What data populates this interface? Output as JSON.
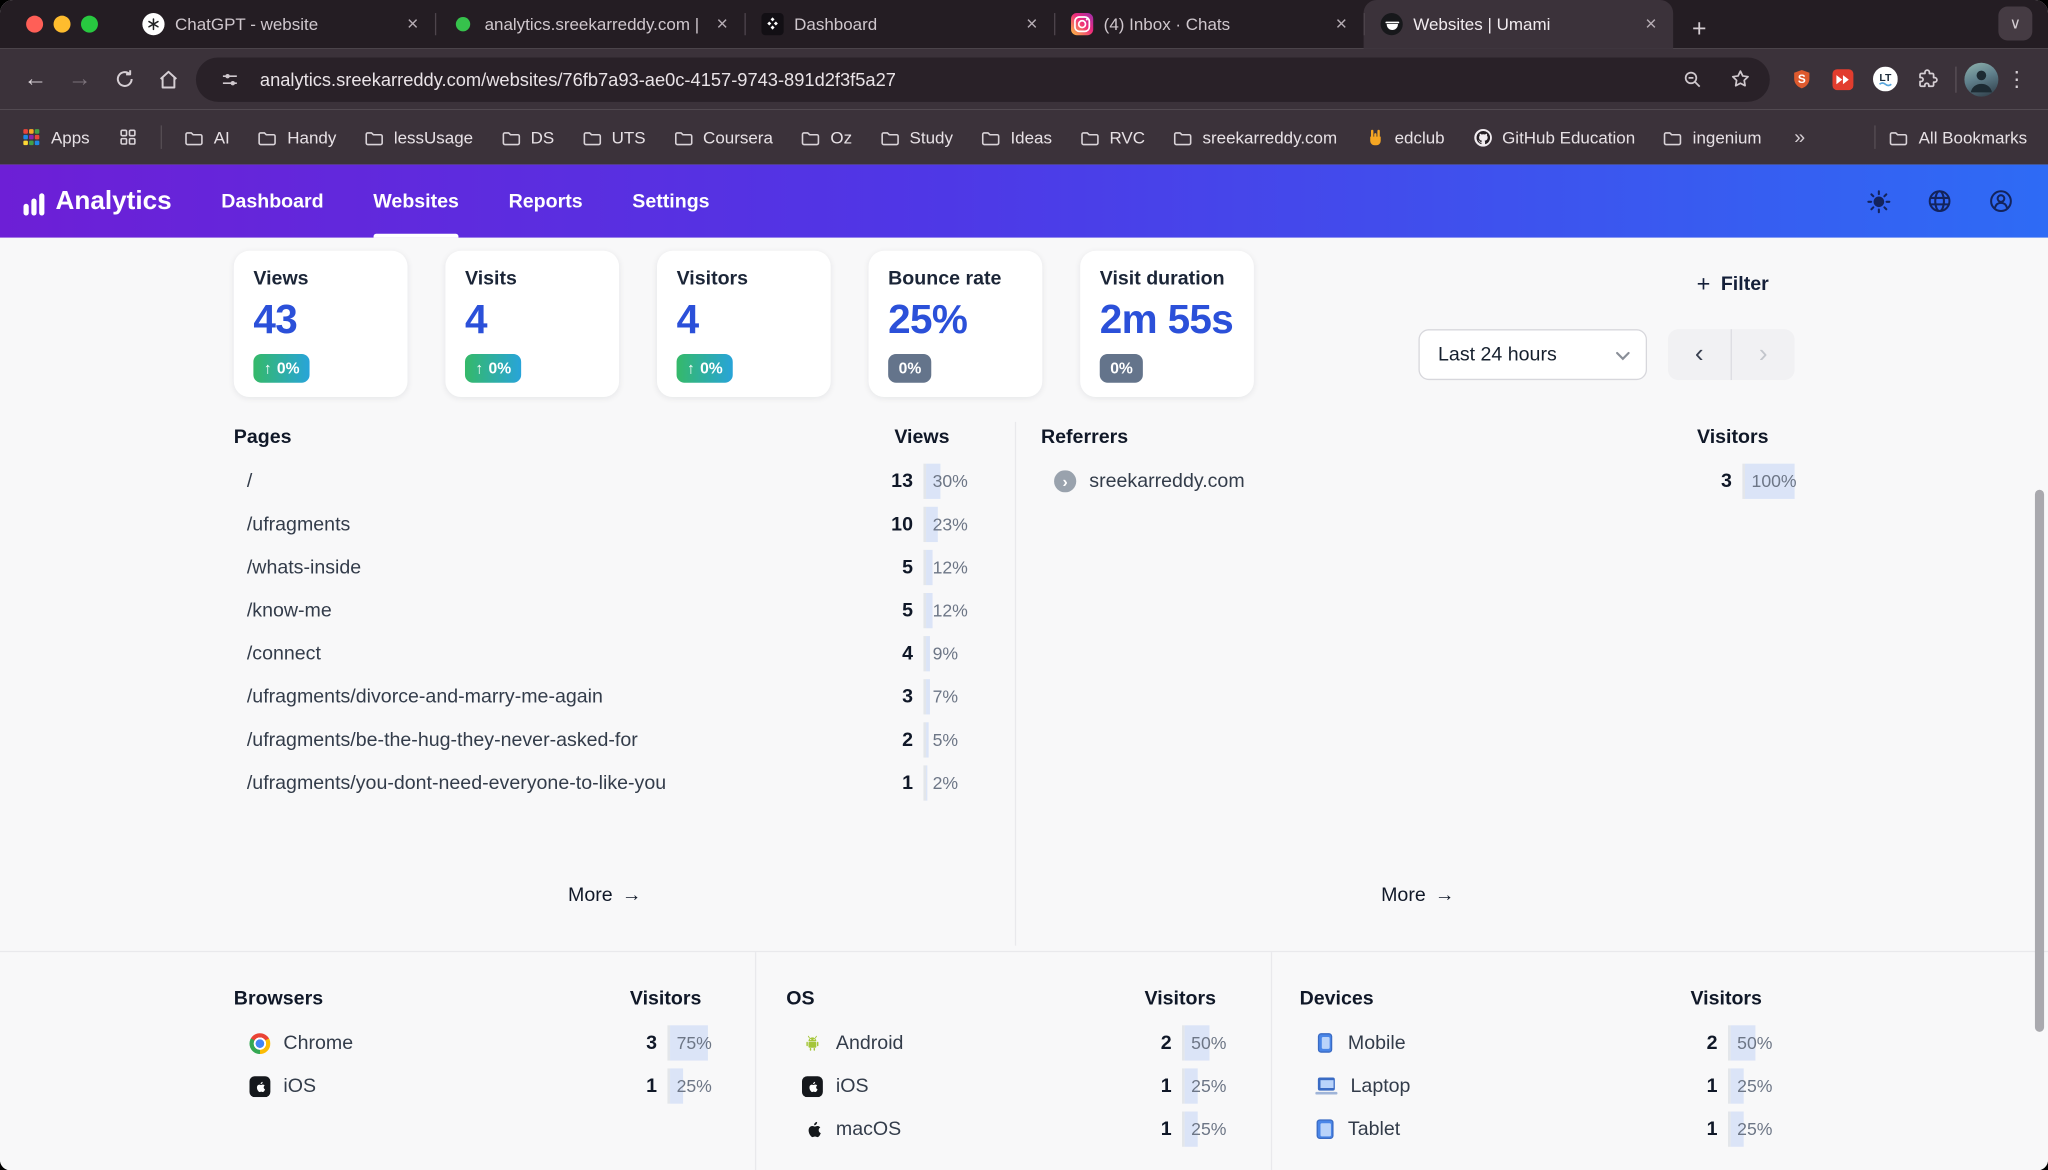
{
  "browser": {
    "tabs": [
      {
        "title": "ChatGPT - website",
        "favicon": "chatgpt",
        "active": false
      },
      {
        "title": "analytics.sreekarreddy.com |",
        "favicon": "green-dot",
        "active": false
      },
      {
        "title": "Dashboard",
        "favicon": "pinecone",
        "active": false
      },
      {
        "title": "(4) Inbox · Chats",
        "favicon": "instagram",
        "active": false
      },
      {
        "title": "Websites | Umami",
        "favicon": "umami",
        "active": true
      }
    ],
    "url": "analytics.sreekarreddy.com/websites/76fb7a93-ae0c-4157-9743-891d2f3f5a27",
    "bookmarks": [
      {
        "label": "Apps",
        "icon": "apps"
      },
      {
        "label": "",
        "icon": "grid"
      },
      {
        "label": "AI",
        "icon": "folder"
      },
      {
        "label": "Handy",
        "icon": "folder"
      },
      {
        "label": "lessUsage",
        "icon": "folder"
      },
      {
        "label": "DS",
        "icon": "folder"
      },
      {
        "label": "UTS",
        "icon": "folder"
      },
      {
        "label": "Coursera",
        "icon": "folder"
      },
      {
        "label": "Oz",
        "icon": "folder"
      },
      {
        "label": "Study",
        "icon": "folder"
      },
      {
        "label": "Ideas",
        "icon": "folder"
      },
      {
        "label": "RVC",
        "icon": "folder"
      },
      {
        "label": "sreekarreddy.com",
        "icon": "folder"
      },
      {
        "label": "edclub",
        "icon": "hand"
      },
      {
        "label": "GitHub Education",
        "icon": "github"
      },
      {
        "label": "ingenium",
        "icon": "folder"
      }
    ],
    "all_bookmarks_label": "All Bookmarks"
  },
  "nav": {
    "brand": "Analytics",
    "items": [
      {
        "label": "Dashboard",
        "active": false
      },
      {
        "label": "Websites",
        "active": true
      },
      {
        "label": "Reports",
        "active": false
      },
      {
        "label": "Settings",
        "active": false
      }
    ]
  },
  "controls": {
    "filter_label": "Filter",
    "date_range": "Last 24 hours"
  },
  "stats": [
    {
      "label": "Views",
      "value": "43",
      "change": "0%",
      "trend": "up"
    },
    {
      "label": "Visits",
      "value": "4",
      "change": "0%",
      "trend": "up"
    },
    {
      "label": "Visitors",
      "value": "4",
      "change": "0%",
      "trend": "up"
    },
    {
      "label": "Bounce rate",
      "value": "25%",
      "change": "0%",
      "trend": "flat"
    },
    {
      "label": "Visit duration",
      "value": "2m 55s",
      "change": "0%",
      "trend": "flat"
    }
  ],
  "panels": {
    "pages": {
      "title": "Pages",
      "metric": "Views",
      "more_label": "More",
      "rows": [
        {
          "label": "/",
          "value": "13",
          "pct": "30%"
        },
        {
          "label": "/ufragments",
          "value": "10",
          "pct": "23%"
        },
        {
          "label": "/whats-inside",
          "value": "5",
          "pct": "12%"
        },
        {
          "label": "/know-me",
          "value": "5",
          "pct": "12%"
        },
        {
          "label": "/connect",
          "value": "4",
          "pct": "9%"
        },
        {
          "label": "/ufragments/divorce-and-marry-me-again",
          "value": "3",
          "pct": "7%"
        },
        {
          "label": "/ufragments/be-the-hug-they-never-asked-for",
          "value": "2",
          "pct": "5%"
        },
        {
          "label": "/ufragments/you-dont-need-everyone-to-like-you",
          "value": "1",
          "pct": "2%"
        }
      ]
    },
    "referrers": {
      "title": "Referrers",
      "metric": "Visitors",
      "more_label": "More",
      "rows": [
        {
          "label": "sreekarreddy.com",
          "icon": "link",
          "value": "3",
          "pct": "100%"
        }
      ]
    },
    "browsers": {
      "title": "Browsers",
      "metric": "Visitors",
      "rows": [
        {
          "label": "Chrome",
          "icon": "chrome",
          "value": "3",
          "pct": "75%"
        },
        {
          "label": "iOS",
          "icon": "ios",
          "value": "1",
          "pct": "25%"
        }
      ]
    },
    "os": {
      "title": "OS",
      "metric": "Visitors",
      "rows": [
        {
          "label": "Android",
          "icon": "android",
          "value": "2",
          "pct": "50%"
        },
        {
          "label": "iOS",
          "icon": "ios",
          "value": "1",
          "pct": "25%"
        },
        {
          "label": "macOS",
          "icon": "apple",
          "value": "1",
          "pct": "25%"
        }
      ]
    },
    "devices": {
      "title": "Devices",
      "metric": "Visitors",
      "rows": [
        {
          "label": "Mobile",
          "icon": "mobile",
          "value": "2",
          "pct": "50%"
        },
        {
          "label": "Laptop",
          "icon": "laptop",
          "value": "1",
          "pct": "25%"
        },
        {
          "label": "Tablet",
          "icon": "tablet",
          "value": "1",
          "pct": "25%"
        }
      ]
    }
  },
  "glyphs": {
    "close": "×",
    "plus": "+",
    "new_tab": "+",
    "chevron_down": "∨",
    "overflow": "»",
    "prev": "‹",
    "next": "›",
    "arrow_right": "→",
    "up_arrow": "↑",
    "menu_dots": "⋮",
    "link_chevron": "›"
  },
  "colors": {
    "nav_gradient_start": "#6d1fd6",
    "nav_gradient_mid": "#4f37e6",
    "nav_gradient_end": "#2e6bf5",
    "metric_blue": "#2b50d9",
    "badge_up_start": "#35b969",
    "badge_up_end": "#28a4d9",
    "badge_neutral": "#64748b",
    "pct_fill": "#dbe4f7"
  }
}
